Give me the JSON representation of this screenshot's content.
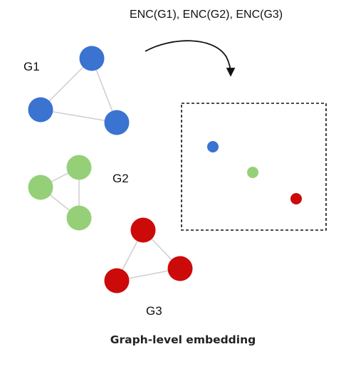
{
  "graphs": [
    {
      "name": "G1",
      "color": "#3a73d0",
      "node_count": 3,
      "edges": [
        [
          0,
          1
        ],
        [
          1,
          2
        ],
        [
          2,
          0
        ]
      ]
    },
    {
      "name": "G2",
      "color": "#95d078",
      "node_count": 3,
      "edges": [
        [
          0,
          1
        ],
        [
          1,
          2
        ],
        [
          2,
          0
        ]
      ]
    },
    {
      "name": "G3",
      "color": "#cc0a0a",
      "node_count": 3,
      "edges": [
        [
          0,
          1
        ],
        [
          1,
          2
        ],
        [
          2,
          0
        ]
      ]
    }
  ],
  "encoding_label": "ENC(G1), ENC(G2), ENC(G3)",
  "embedding_points": [
    {
      "graph": "G1",
      "color": "#3a73d0"
    },
    {
      "graph": "G2",
      "color": "#95d078"
    },
    {
      "graph": "G3",
      "color": "#cc0a0a"
    }
  ],
  "caption": "Graph-level embedding"
}
